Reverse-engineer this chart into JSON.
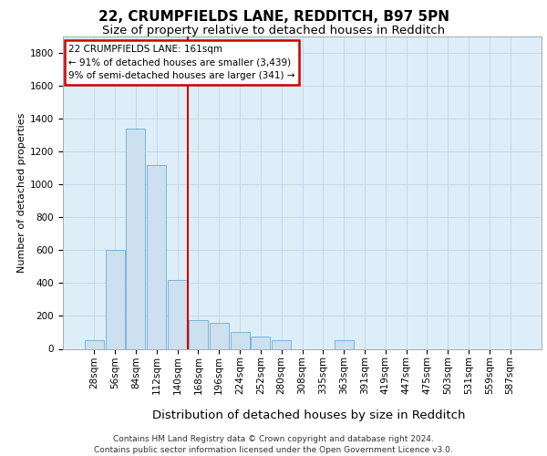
{
  "title_line1": "22, CRUMPFIELDS LANE, REDDITCH, B97 5PN",
  "title_line2": "Size of property relative to detached houses in Redditch",
  "xlabel": "Distribution of detached houses by size in Redditch",
  "ylabel": "Number of detached properties",
  "footer_line1": "Contains HM Land Registry data © Crown copyright and database right 2024.",
  "footer_line2": "Contains public sector information licensed under the Open Government Licence v3.0.",
  "annotation_line1": "22 CRUMPFIELDS LANE: 161sqm",
  "annotation_line2": "← 91% of detached houses are smaller (3,439)",
  "annotation_line3": "9% of semi-detached houses are larger (341) →",
  "bar_categories": [
    "28sqm",
    "56sqm",
    "84sqm",
    "112sqm",
    "140sqm",
    "168sqm",
    "196sqm",
    "224sqm",
    "252sqm",
    "280sqm",
    "308sqm",
    "335sqm",
    "363sqm",
    "391sqm",
    "419sqm",
    "447sqm",
    "475sqm",
    "503sqm",
    "531sqm",
    "559sqm",
    "587sqm"
  ],
  "bar_values": [
    50,
    600,
    1340,
    1120,
    420,
    175,
    160,
    100,
    75,
    50,
    0,
    0,
    50,
    0,
    0,
    0,
    0,
    0,
    0,
    0,
    0
  ],
  "bar_color": "#cce0f0",
  "bar_edge_color": "#6aadd5",
  "vline_color": "#cc0000",
  "annotation_edge_color": "#cc0000",
  "ylim": [
    0,
    1900
  ],
  "yticks": [
    0,
    200,
    400,
    600,
    800,
    1000,
    1200,
    1400,
    1600,
    1800
  ],
  "grid_color": "#c8d8e8",
  "bg_color": "#ddeef8",
  "title1_fontsize": 11,
  "title2_fontsize": 9.5,
  "xlabel_fontsize": 9.5,
  "ylabel_fontsize": 8,
  "tick_fontsize": 7.5,
  "annotation_fontsize": 7.5,
  "footer_fontsize": 6.5
}
